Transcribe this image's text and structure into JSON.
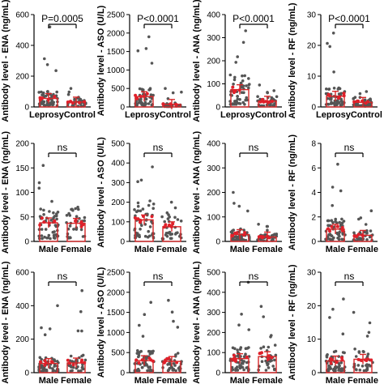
{
  "figure": {
    "background": "#ffffff"
  },
  "style": {
    "bar_edge": "#d62728",
    "point_color": "#555555",
    "mean_point_color": "#e0202a",
    "axis_color": "#000000"
  },
  "chart_data": [
    {
      "type": "bar",
      "panel": "row1-ena",
      "ylabel": "Antibody level - ENA (ng/mL)",
      "categories": [
        "Leprosy",
        "Control"
      ],
      "values": [
        55,
        32
      ],
      "ylim": [
        0,
        600
      ],
      "yticks": [
        "0",
        "200",
        "400",
        "600"
      ],
      "significance": "P=0.0005",
      "cat_label_mode": "joined",
      "scatter_max": [
        520,
        120
      ]
    },
    {
      "type": "bar",
      "panel": "row1-aso",
      "ylabel": "Antibody level - ASO (U/L)",
      "categories": [
        "Leprosy",
        "Control"
      ],
      "values": [
        280,
        70
      ],
      "ylim": [
        0,
        2500
      ],
      "yticks": [
        "0",
        "500",
        "1000",
        "1500",
        "2000",
        "2500"
      ],
      "significance": "P<0.0001",
      "cat_label_mode": "joined",
      "scatter_max": [
        1900,
        500
      ]
    },
    {
      "type": "bar",
      "panel": "row1-ana",
      "ylabel": "Antibody level - ANA (ng/mL)",
      "categories": [
        "Leprosy",
        "Control"
      ],
      "values": [
        75,
        25
      ],
      "ylim": [
        0,
        400
      ],
      "yticks": [
        "0",
        "100",
        "200",
        "300",
        "400"
      ],
      "significance": "P<0.0001",
      "cat_label_mode": "joined",
      "scatter_max": [
        330,
        95
      ]
    },
    {
      "type": "bar",
      "panel": "row1-rf",
      "ylabel": "Antibody level - RF (ng/mL)",
      "categories": [
        "Leprosy",
        "Control"
      ],
      "values": [
        3.5,
        1.5
      ],
      "ylim": [
        0,
        30
      ],
      "yticks": [
        "0",
        "10",
        "20",
        "30"
      ],
      "significance": "P<0.0001",
      "cat_label_mode": "joined",
      "scatter_max": [
        24,
        5
      ]
    },
    {
      "type": "bar",
      "panel": "row2-ena",
      "ylabel": "Antibody level - ENA (ng/mL)",
      "categories": [
        "Male",
        "Female"
      ],
      "values": [
        38,
        37
      ],
      "ylim": [
        0,
        200
      ],
      "yticks": [
        "0",
        "50",
        "100",
        "150",
        "200"
      ],
      "significance": "ns",
      "cat_label_mode": "separate",
      "scatter_max": [
        155,
        70
      ]
    },
    {
      "type": "bar",
      "panel": "row2-aso",
      "ylabel": "Antibody level - ASO (U/L)",
      "categories": [
        "Male",
        "Female"
      ],
      "values": [
        110,
        75
      ],
      "ylim": [
        0,
        500
      ],
      "yticks": [
        "0",
        "100",
        "200",
        "300",
        "400",
        "500"
      ],
      "significance": "ns",
      "cat_label_mode": "separate",
      "scatter_max": [
        380,
        200
      ]
    },
    {
      "type": "bar",
      "panel": "row2-ana",
      "ylabel": "Antibody level - ANA (ng/mL)",
      "categories": [
        "Male",
        "Female"
      ],
      "values": [
        28,
        18
      ],
      "ylim": [
        0,
        400
      ],
      "yticks": [
        "0",
        "100",
        "200",
        "300",
        "400"
      ],
      "significance": "ns",
      "cat_label_mode": "separate",
      "scatter_max": [
        200,
        70
      ]
    },
    {
      "type": "bar",
      "panel": "row2-rf",
      "ylabel": "Antibody level - RF (ng/mL)",
      "categories": [
        "Male",
        "Female"
      ],
      "values": [
        1.0,
        0.5
      ],
      "ylim": [
        0,
        8
      ],
      "yticks": [
        "0",
        "2",
        "4",
        "6",
        "8"
      ],
      "significance": "ns",
      "cat_label_mode": "separate",
      "scatter_max": [
        6.3,
        2.5
      ]
    },
    {
      "type": "bar",
      "panel": "row3-ena",
      "ylabel": "Antibody level - ENA (ng/mL)",
      "categories": [
        "Male",
        "Female"
      ],
      "values": [
        55,
        58
      ],
      "ylim": [
        0,
        600
      ],
      "yticks": [
        "0",
        "200",
        "400",
        "600"
      ],
      "significance": "ns",
      "cat_label_mode": "separate",
      "scatter_max": [
        400,
        490
      ]
    },
    {
      "type": "bar",
      "panel": "row3-aso",
      "ylabel": "Antibody level - ASO (U/L)",
      "categories": [
        "Male",
        "Female"
      ],
      "values": [
        300,
        280
      ],
      "ylim": [
        0,
        2500
      ],
      "yticks": [
        "0",
        "500",
        "1000",
        "1500",
        "2000",
        "2500"
      ],
      "significance": "ns",
      "cat_label_mode": "separate",
      "scatter_max": [
        1750,
        1800
      ]
    },
    {
      "type": "bar",
      "panel": "row3-ana",
      "ylabel": "Antibody level - ANA (ng/mL)",
      "categories": [
        "Male",
        "Female"
      ],
      "values": [
        70,
        80
      ],
      "ylim": [
        0,
        500
      ],
      "yticks": [
        "0",
        "100",
        "200",
        "300",
        "400",
        "500"
      ],
      "significance": "ns",
      "cat_label_mode": "separate",
      "scatter_max": [
        450,
        330
      ]
    },
    {
      "type": "bar",
      "panel": "row3-rf",
      "ylabel": "Antibody level - RF (ng/mL)",
      "categories": [
        "Male",
        "Female"
      ],
      "values": [
        3.5,
        4.0
      ],
      "ylim": [
        0,
        30
      ],
      "yticks": [
        "0",
        "10",
        "20",
        "30"
      ],
      "significance": "ns",
      "cat_label_mode": "separate",
      "scatter_max": [
        22,
        18
      ]
    }
  ]
}
